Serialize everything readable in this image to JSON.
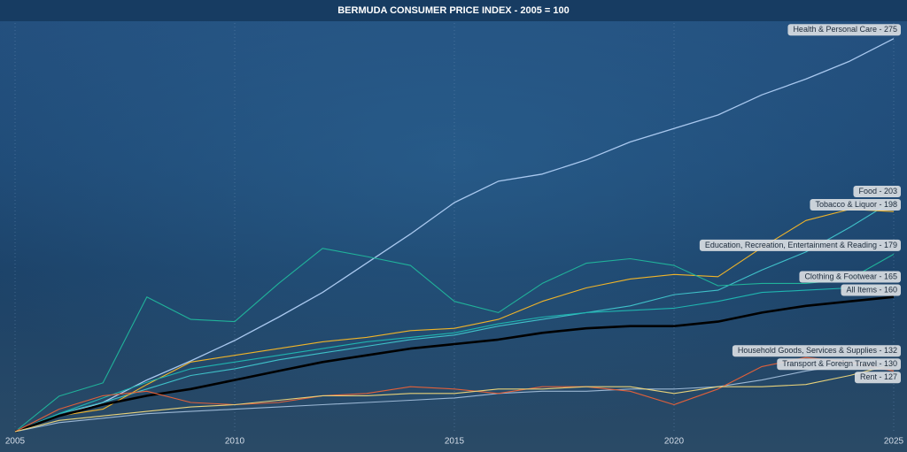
{
  "chart_data": {
    "type": "line",
    "title": "BERMUDA CONSUMER PRICE INDEX - 2005 = 100",
    "x": [
      2005,
      2006,
      2007,
      2008,
      2009,
      2010,
      2011,
      2012,
      2013,
      2014,
      2015,
      2016,
      2017,
      2018,
      2019,
      2020,
      2021,
      2022,
      2023,
      2024,
      2025
    ],
    "xlim": [
      2005,
      2025
    ],
    "xticks": [
      2005,
      2010,
      2015,
      2020,
      2025
    ],
    "ylim": [
      100,
      280
    ],
    "grid": true,
    "series": [
      {
        "name": "Health & Personal Care - 275",
        "color": "#a9c8ef",
        "width": 1.3,
        "values": [
          100,
          107,
          113,
          123,
          131.5,
          140.6,
          151,
          162,
          175,
          188,
          202,
          211.5,
          214.7,
          221,
          229,
          235,
          241,
          250,
          257,
          265,
          275
        ]
      },
      {
        "name": "Food - 203",
        "color": "#3fc1c9",
        "width": 1.1,
        "values": [
          100,
          108,
          113,
          119,
          125,
          128,
          132,
          135,
          138,
          141,
          143,
          147,
          150,
          153,
          156,
          161,
          163,
          172,
          180,
          191,
          203
        ]
      },
      {
        "name": "Tobacco & Liquor - 198",
        "color": "#f0b429",
        "width": 1.1,
        "values": [
          100,
          107,
          110,
          121,
          131,
          134,
          137,
          140,
          142,
          145,
          146,
          150,
          158,
          164,
          168,
          170,
          169,
          182,
          194,
          199,
          198
        ]
      },
      {
        "name": "Education, Recreation, Entertainment & Reading - 179",
        "color": "#20b29a",
        "width": 1.1,
        "values": [
          100,
          115.8,
          121.7,
          160,
          150,
          149,
          166,
          181.6,
          178,
          174,
          158,
          153,
          166,
          175,
          177,
          174,
          165,
          166,
          166,
          168,
          179
        ]
      },
      {
        "name": "Clothing & Footwear - 165",
        "color": "#1fb5b0",
        "width": 1.1,
        "values": [
          100,
          108,
          115,
          122,
          128,
          131,
          134,
          137,
          140,
          142,
          144,
          148,
          151,
          153,
          154,
          155,
          158,
          162,
          163,
          164,
          165
        ]
      },
      {
        "name": "All Items - 160",
        "color": "#000000",
        "width": 2.6,
        "values": [
          100,
          107,
          112,
          116,
          119,
          123,
          127,
          131,
          134,
          137,
          139,
          141,
          144,
          146,
          147,
          147,
          149,
          153,
          156,
          158,
          160
        ]
      },
      {
        "name": "Household Goods, Services & Supplies - 132",
        "color": "#9bb7d4",
        "width": 1.1,
        "values": [
          100,
          104,
          106,
          108,
          109,
          110,
          111,
          112,
          113,
          114,
          115,
          117,
          118,
          118,
          119,
          119,
          120,
          123,
          127,
          130,
          132
        ]
      },
      {
        "name": "Rent - 127",
        "color": "#e0603a",
        "width": 1.1,
        "values": [
          100,
          110,
          116,
          118,
          113,
          112,
          113,
          116,
          117,
          120,
          119,
          117,
          120,
          120,
          118,
          112,
          119,
          129,
          133,
          131,
          127
        ]
      },
      {
        "name": "Transport & Foreign Travel - 130",
        "color": "#e8d27a",
        "width": 1.1,
        "values": [
          100,
          105,
          107,
          109,
          111,
          112,
          114,
          116,
          116,
          117,
          117,
          119,
          119,
          120,
          120,
          117,
          120,
          120,
          121,
          125,
          130
        ]
      }
    ]
  }
}
